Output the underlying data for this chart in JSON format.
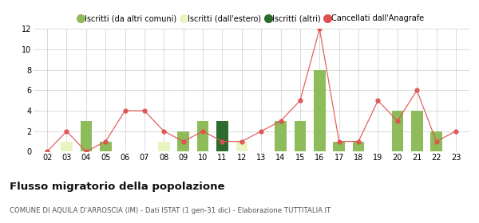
{
  "years": [
    "02",
    "03",
    "04",
    "05",
    "06",
    "07",
    "08",
    "09",
    "10",
    "11",
    "12",
    "13",
    "14",
    "15",
    "16",
    "17",
    "18",
    "19",
    "20",
    "21",
    "22",
    "23"
  ],
  "iscritti_altri_comuni": [
    0,
    0,
    3,
    1,
    0,
    0,
    0,
    2,
    3,
    0,
    0,
    0,
    3,
    3,
    8,
    1,
    1,
    0,
    4,
    4,
    2,
    0
  ],
  "iscritti_estero": [
    0,
    1,
    0,
    0,
    0,
    0,
    1,
    0,
    0,
    0,
    1,
    0,
    0,
    0,
    0,
    0,
    0,
    0,
    0,
    0,
    0,
    0
  ],
  "iscritti_altri": [
    0,
    0,
    0,
    0,
    0,
    0,
    0,
    0,
    0,
    3,
    0,
    0,
    0,
    0,
    0,
    0,
    0,
    0,
    0,
    0,
    0,
    0
  ],
  "cancellati": [
    0,
    2,
    0,
    1,
    4,
    4,
    2,
    1,
    2,
    1,
    1,
    2,
    3,
    5,
    12,
    1,
    1,
    5,
    3,
    6,
    1,
    2
  ],
  "color_altri_comuni": "#8fbc5a",
  "color_estero": "#e8f5c0",
  "color_altri": "#2d6a2d",
  "color_cancellati": "#e05050",
  "ylim": [
    0,
    12
  ],
  "yticks": [
    0,
    2,
    4,
    6,
    8,
    10,
    12
  ],
  "title": "Flusso migratorio della popolazione",
  "subtitle": "COMUNE DI AQUILA D'ARROSCIA (IM) - Dati ISTAT (1 gen-31 dic) - Elaborazione TUTTITALIA.IT",
  "legend_labels": [
    "Iscritti (da altri comuni)",
    "Iscritti (dall'estero)",
    "Iscritti (altri)",
    "Cancellati dall'Anagrafe"
  ],
  "background_color": "#ffffff",
  "grid_color": "#cccccc"
}
